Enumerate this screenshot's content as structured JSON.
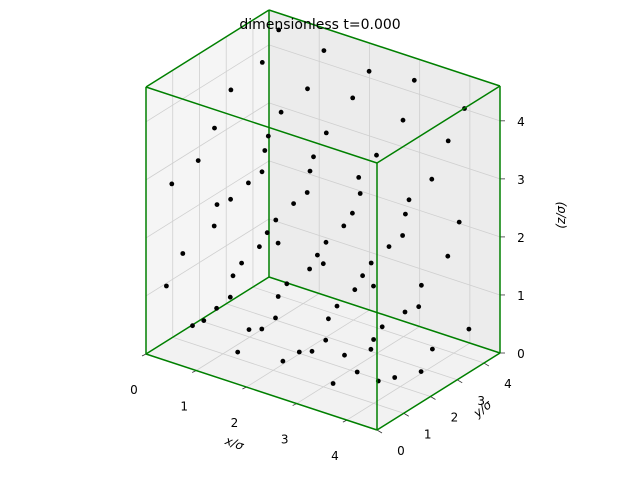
{
  "chart_data": {
    "type": "scatter",
    "projection": "3d",
    "title": "dimensionless t=0.000",
    "xlabel": "x/σ",
    "ylabel": "y/σ",
    "zlabel": "(z/σ)",
    "x_ticks": [
      "0",
      "1",
      "2",
      "3",
      "4"
    ],
    "y_ticks": [
      "0",
      "1",
      "2",
      "3",
      "4"
    ],
    "z_ticks": [
      "0",
      "1",
      "2",
      "3",
      "4"
    ],
    "xlim": [
      0,
      4.6
    ],
    "ylim": [
      0,
      4.6
    ],
    "zlim": [
      0,
      4.6
    ],
    "grid": true,
    "box_color": "#008000",
    "point_color": "#000000",
    "points": [
      [
        0.3,
        4.4,
        4.4
      ],
      [
        1.2,
        4.4,
        4.3
      ],
      [
        2.1,
        4.4,
        4.2
      ],
      [
        3.0,
        4.4,
        4.3
      ],
      [
        4.0,
        4.4,
        4.1
      ],
      [
        0.4,
        3.6,
        4.1
      ],
      [
        1.3,
        3.6,
        3.9
      ],
      [
        2.2,
        3.6,
        4.0
      ],
      [
        3.2,
        3.6,
        3.9
      ],
      [
        4.1,
        3.6,
        3.8
      ],
      [
        0.2,
        2.8,
        3.8
      ],
      [
        1.2,
        2.8,
        3.7
      ],
      [
        2.1,
        2.8,
        3.6
      ],
      [
        3.1,
        2.8,
        3.5
      ],
      [
        4.2,
        2.8,
        3.4
      ],
      [
        0.3,
        2.0,
        3.4
      ],
      [
        1.3,
        2.0,
        3.3
      ],
      [
        2.2,
        2.0,
        3.2
      ],
      [
        3.2,
        2.0,
        3.1
      ],
      [
        4.1,
        2.0,
        3.0
      ],
      [
        0.4,
        1.2,
        3.1
      ],
      [
        1.4,
        1.2,
        3.0
      ],
      [
        2.3,
        1.2,
        2.9
      ],
      [
        3.3,
        1.2,
        2.8
      ],
      [
        4.2,
        1.2,
        2.7
      ],
      [
        0.3,
        0.4,
        2.9
      ],
      [
        1.2,
        0.4,
        2.8
      ],
      [
        2.2,
        0.4,
        2.6
      ],
      [
        3.2,
        0.4,
        2.5
      ],
      [
        4.1,
        0.4,
        2.4
      ],
      [
        0.2,
        4.2,
        2.6
      ],
      [
        1.1,
        4.2,
        2.5
      ],
      [
        2.0,
        4.2,
        2.4
      ],
      [
        3.0,
        4.2,
        2.3
      ],
      [
        4.0,
        4.2,
        2.2
      ],
      [
        0.5,
        3.4,
        2.3
      ],
      [
        1.4,
        3.4,
        2.2
      ],
      [
        2.3,
        3.4,
        2.1
      ],
      [
        3.3,
        3.4,
        2.0
      ],
      [
        4.2,
        3.4,
        1.9
      ],
      [
        0.3,
        2.6,
        2.0
      ],
      [
        1.2,
        2.6,
        1.9
      ],
      [
        2.2,
        2.6,
        1.8
      ],
      [
        3.1,
        2.6,
        1.7
      ],
      [
        4.1,
        2.6,
        1.6
      ],
      [
        0.4,
        1.8,
        1.8
      ],
      [
        1.3,
        1.8,
        1.7
      ],
      [
        2.3,
        1.8,
        1.6
      ],
      [
        3.2,
        1.8,
        1.5
      ],
      [
        4.2,
        1.8,
        1.4
      ],
      [
        0.2,
        1.0,
        1.5
      ],
      [
        1.2,
        1.0,
        1.4
      ],
      [
        2.1,
        1.0,
        1.3
      ],
      [
        3.1,
        1.0,
        1.2
      ],
      [
        4.0,
        1.0,
        1.1
      ],
      [
        0.3,
        0.2,
        1.2
      ],
      [
        1.3,
        0.2,
        1.1
      ],
      [
        2.2,
        0.2,
        1.0
      ],
      [
        3.2,
        0.2,
        0.9
      ],
      [
        4.1,
        0.2,
        0.8
      ],
      [
        0.5,
        4.0,
        0.9
      ],
      [
        1.4,
        4.0,
        0.8
      ],
      [
        2.4,
        4.0,
        0.7
      ],
      [
        3.3,
        4.0,
        0.6
      ],
      [
        4.3,
        4.0,
        0.5
      ],
      [
        0.2,
        3.2,
        0.7
      ],
      [
        1.1,
        3.2,
        0.6
      ],
      [
        2.1,
        3.2,
        0.5
      ],
      [
        3.0,
        3.2,
        0.4
      ],
      [
        4.0,
        3.2,
        0.3
      ],
      [
        0.4,
        2.4,
        0.4
      ],
      [
        1.3,
        2.4,
        0.3
      ],
      [
        2.3,
        2.4,
        0.2
      ],
      [
        3.2,
        2.4,
        0.3
      ],
      [
        4.2,
        2.4,
        0.2
      ],
      [
        0.3,
        1.6,
        0.2
      ],
      [
        1.2,
        1.6,
        0.3
      ],
      [
        2.2,
        1.6,
        0.2
      ],
      [
        3.1,
        1.6,
        0.4
      ],
      [
        4.1,
        1.6,
        0.3
      ],
      [
        0.5,
        0.8,
        0.4
      ],
      [
        1.4,
        0.8,
        0.2
      ],
      [
        2.3,
        0.8,
        0.3
      ],
      [
        3.3,
        0.8,
        0.2
      ],
      [
        4.2,
        0.8,
        0.5
      ]
    ]
  }
}
